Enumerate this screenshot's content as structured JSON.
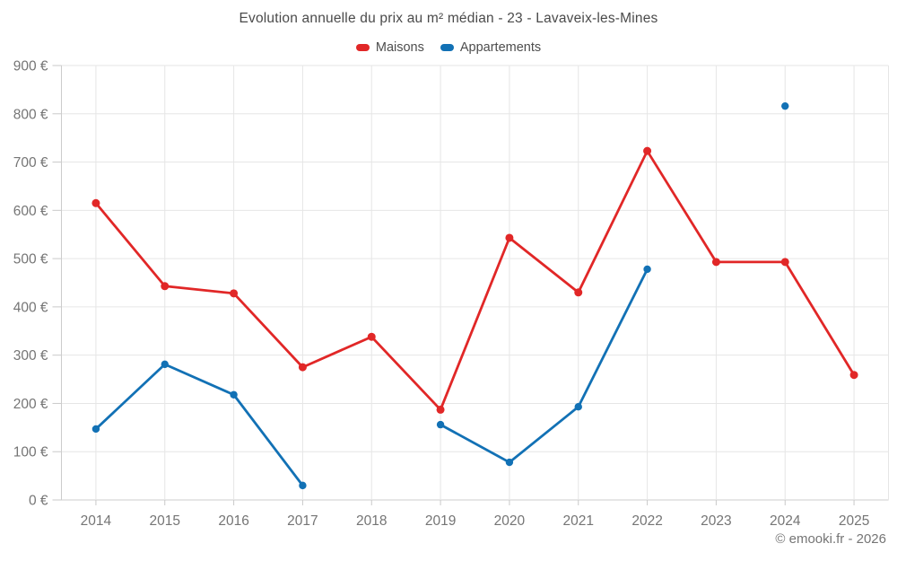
{
  "header": {
    "title": "Evolution annuelle du prix au m² médian - 23 - Lavaveix-les-Mines"
  },
  "footer": {
    "credit": "© emooki.fr - 2026"
  },
  "chart_data": {
    "type": "line",
    "title": "Evolution annuelle du prix au m² médian - 23 - Lavaveix-les-Mines",
    "xlabel": "",
    "ylabel": "",
    "categories": [
      "2014",
      "2015",
      "2016",
      "2017",
      "2018",
      "2019",
      "2020",
      "2021",
      "2022",
      "2023",
      "2024",
      "2025"
    ],
    "series": [
      {
        "name": "Maisons",
        "color": "#e12727",
        "values": [
          615,
          443,
          428,
          275,
          338,
          187,
          543,
          430,
          723,
          493,
          493,
          259
        ]
      },
      {
        "name": "Appartements",
        "color": "#1271b5",
        "values": [
          147,
          281,
          218,
          30,
          null,
          156,
          78,
          193,
          478,
          null,
          816,
          null
        ]
      }
    ],
    "ylim": [
      0,
      900
    ],
    "y_tick_step": 100,
    "y_tick_suffix": " €",
    "grid": true,
    "legend_position": "top",
    "marker": "circle",
    "gaps_note": "null values = missing data (no point drawn)",
    "colors": {
      "gridline": "#e6e6e6",
      "axis": "#cccccc",
      "tick": "#c9c9c9",
      "tick_label": "#757575",
      "title_text": "#4a4a4a",
      "legend_text": "#4d4d4d"
    }
  }
}
